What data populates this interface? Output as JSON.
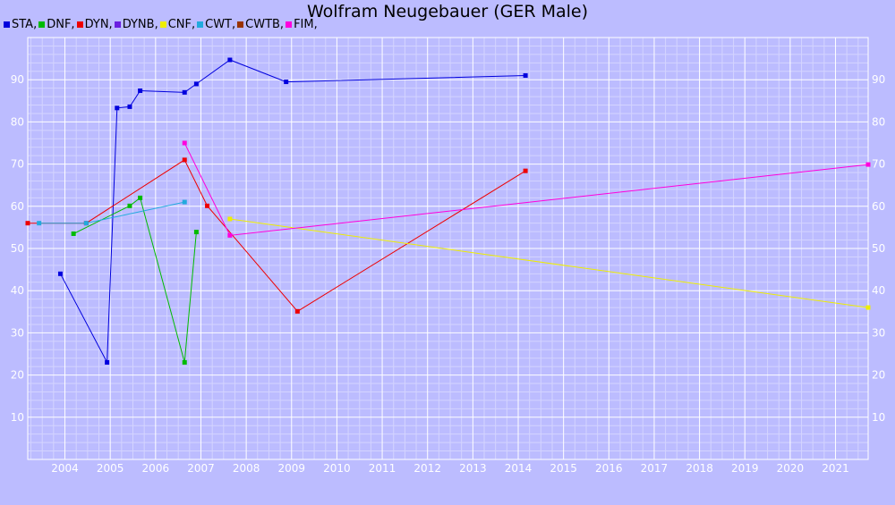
{
  "chart_data": {
    "type": "line",
    "title": "Wolfram Neugebauer (GER Male)",
    "xlabel": "",
    "ylabel": "",
    "x_ticks": [
      "2004",
      "2005",
      "2006",
      "2007",
      "2008",
      "2009",
      "2010",
      "2011",
      "2012",
      "2013",
      "2014",
      "2015",
      "2016",
      "2017",
      "2018",
      "2019",
      "2020",
      "2021"
    ],
    "y_ticks": [
      "10",
      "20",
      "30",
      "40",
      "50",
      "60",
      "70",
      "80",
      "90"
    ],
    "xlim": [
      2003.18,
      2021.72
    ],
    "ylim": [
      0,
      100
    ],
    "grid": true,
    "legend_position": "top-left",
    "legend": [
      {
        "name": "STA,",
        "color": "#0000dd"
      },
      {
        "name": "DNF,",
        "color": "#00bb00"
      },
      {
        "name": "DYN,",
        "color": "#ee0000"
      },
      {
        "name": "DYNB,",
        "color": "#6a1ee0"
      },
      {
        "name": "CNF,",
        "color": "#eeee00"
      },
      {
        "name": "CWT,",
        "color": "#22aadd"
      },
      {
        "name": "CWTB,",
        "color": "#993300"
      },
      {
        "name": "FIM,",
        "color": "#ff00dd"
      }
    ],
    "series": [
      {
        "name": "STA",
        "color": "#0000dd",
        "points": [
          [
            2003.9,
            44
          ],
          [
            2004.93,
            23
          ],
          [
            2005.15,
            83.3
          ],
          [
            2005.43,
            83.6
          ],
          [
            2005.66,
            87.4
          ],
          [
            2006.64,
            87
          ],
          [
            2006.9,
            89
          ],
          [
            2007.64,
            94.7
          ],
          [
            2008.88,
            89.5
          ],
          [
            2014.16,
            91
          ]
        ]
      },
      {
        "name": "DNF",
        "color": "#00bb00",
        "points": [
          [
            2004.19,
            53.5
          ],
          [
            2005.43,
            60.1
          ],
          [
            2005.66,
            62
          ],
          [
            2006.64,
            23
          ],
          [
            2006.9,
            53.9
          ]
        ]
      },
      {
        "name": "DYN",
        "color": "#ee0000",
        "points": [
          [
            2003.18,
            56
          ],
          [
            2004.47,
            56
          ],
          [
            2006.64,
            71
          ],
          [
            2007.14,
            60.1
          ],
          [
            2009.13,
            35.1
          ],
          [
            2014.16,
            68.4
          ]
        ]
      },
      {
        "name": "CNF",
        "color": "#eeee00",
        "points": [
          [
            2007.64,
            57
          ],
          [
            2021.72,
            36
          ]
        ]
      },
      {
        "name": "CWT",
        "color": "#22aadd",
        "points": [
          [
            2003.43,
            56
          ],
          [
            2004.47,
            56
          ],
          [
            2006.64,
            61
          ]
        ]
      },
      {
        "name": "FIM",
        "color": "#ff00dd",
        "points": [
          [
            2006.64,
            75
          ],
          [
            2007.64,
            53.1
          ],
          [
            2021.72,
            69.9
          ]
        ]
      }
    ]
  }
}
